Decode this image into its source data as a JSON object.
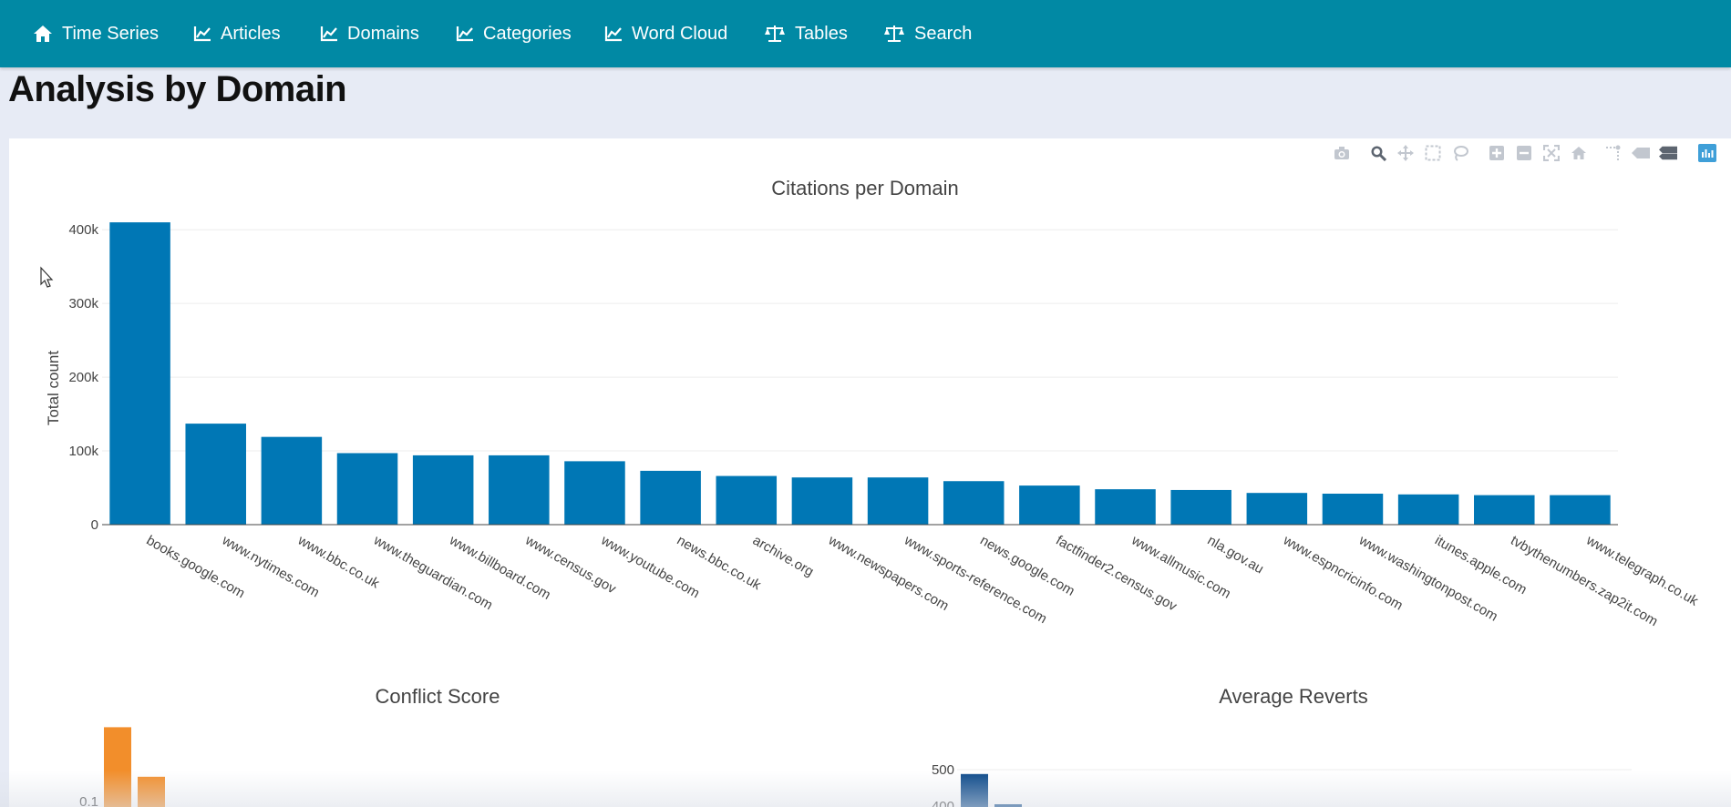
{
  "nav": {
    "items": [
      {
        "label": "Time Series",
        "icon": "home-icon"
      },
      {
        "label": "Articles",
        "icon": "line-chart-icon"
      },
      {
        "label": "Domains",
        "icon": "line-chart-icon"
      },
      {
        "label": "Categories",
        "icon": "line-chart-icon"
      },
      {
        "label": "Word Cloud",
        "icon": "line-chart-icon"
      },
      {
        "label": "Tables",
        "icon": "balance-scale-icon"
      },
      {
        "label": "Search",
        "icon": "balance-scale-icon"
      }
    ]
  },
  "page": {
    "title": "Analysis by Domain"
  },
  "modebar": {
    "icons": [
      "camera-icon",
      "zoom-icon",
      "pan-icon",
      "box-select-icon",
      "lasso-icon",
      "zoom-in-icon",
      "zoom-out-icon",
      "autoscale-icon",
      "reset-axes-icon",
      "spike-lines-icon",
      "hover-closest-icon",
      "hover-compare-icon",
      "plotly-logo-icon"
    ]
  },
  "colors": {
    "navbar": "#0189a4",
    "bar": "#0077b5",
    "conflict_bar": "#f28e2b",
    "reverts_bar": "#0d4a8a",
    "background": "#e7ebf5"
  },
  "chart_data": [
    {
      "type": "bar",
      "title": "Citations per Domain",
      "xlabel": "",
      "ylabel": "Total count",
      "ylim": [
        0,
        420000
      ],
      "yticks": [
        0,
        100000,
        200000,
        300000,
        400000
      ],
      "ytick_labels": [
        "0",
        "100k",
        "200k",
        "300k",
        "400k"
      ],
      "grid": true,
      "categories": [
        "books.google.com",
        "www.nytimes.com",
        "www.bbc.co.uk",
        "www.theguardian.com",
        "www.billboard.com",
        "www.census.gov",
        "www.youtube.com",
        "news.bbc.co.uk",
        "archive.org",
        "www.newspapers.com",
        "www.sports-reference.com",
        "news.google.com",
        "factfinder2.census.gov",
        "www.allmusic.com",
        "nla.gov.au",
        "www.espncricinfo.com",
        "www.washingtonpost.com",
        "itunes.apple.com",
        "tvbythenumbers.zap2it.com",
        "www.telegraph.co.uk"
      ],
      "values": [
        410000,
        137000,
        119000,
        97000,
        94000,
        94000,
        86000,
        73000,
        66000,
        64000,
        64000,
        59000,
        53000,
        48000,
        47000,
        43000,
        42000,
        41000,
        40000,
        40000
      ]
    },
    {
      "type": "bar",
      "title": "Conflict Score",
      "ytick_labels": [
        "0.1"
      ],
      "values": [
        0.13,
        0.11
      ]
    },
    {
      "type": "bar",
      "title": "Average Reverts",
      "ytick_labels": [
        "500",
        "400"
      ],
      "values": [
        488,
        405
      ]
    }
  ]
}
